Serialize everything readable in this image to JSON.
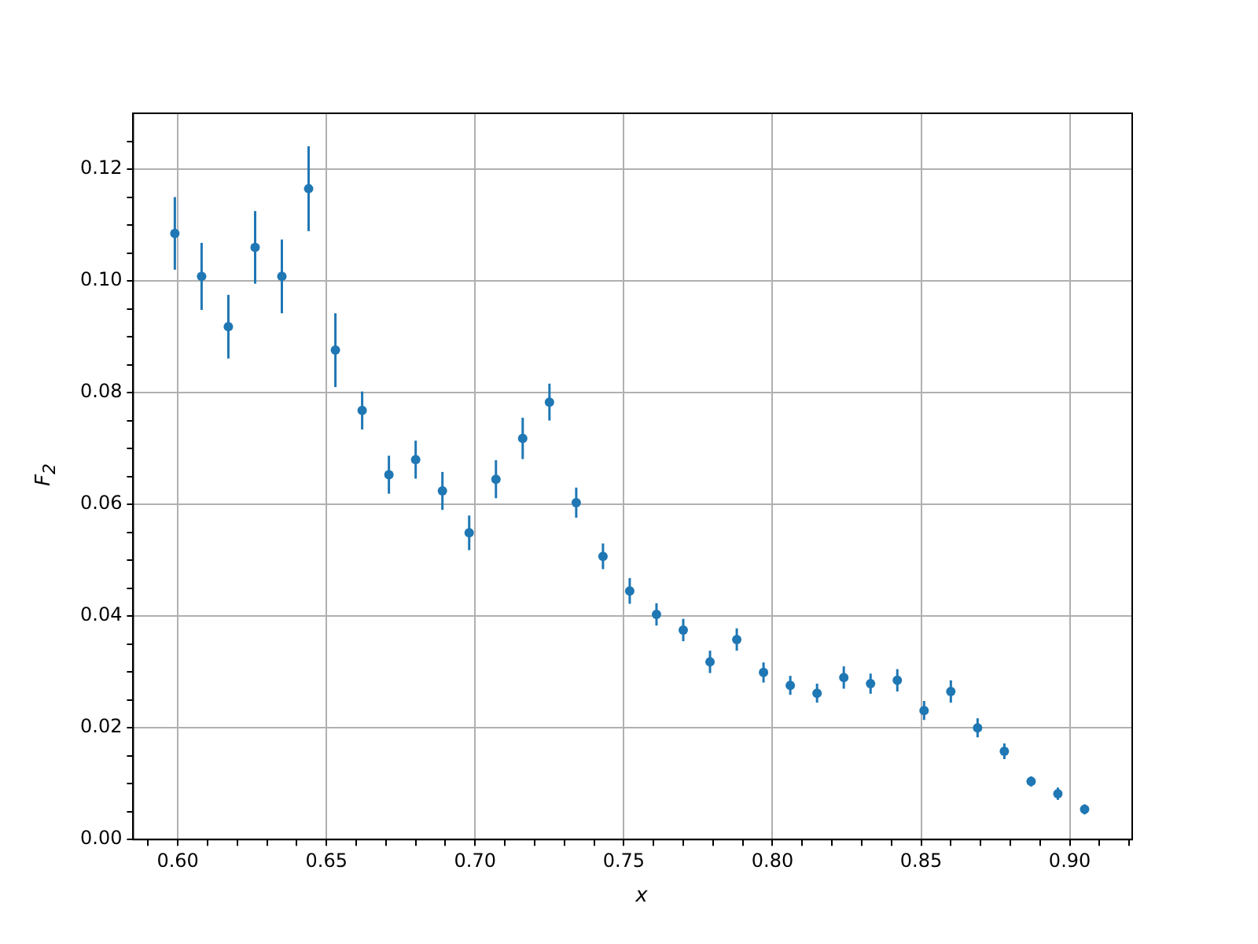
{
  "chart_data": {
    "type": "scatter",
    "xlabel": "x",
    "ylabel": "F$_{2}$",
    "marker": "circle",
    "grid": true,
    "x": [
      0.599,
      0.608,
      0.617,
      0.626,
      0.635,
      0.644,
      0.653,
      0.662,
      0.671,
      0.68,
      0.689,
      0.698,
      0.707,
      0.716,
      0.725,
      0.734,
      0.743,
      0.752,
      0.761,
      0.77,
      0.779,
      0.788,
      0.797,
      0.806,
      0.815,
      0.824,
      0.833,
      0.842,
      0.851,
      0.86,
      0.869,
      0.878,
      0.887,
      0.896,
      0.905
    ],
    "series": [
      {
        "color": "#1f77b4",
        "values": [
          0.1085,
          0.1008,
          0.0918,
          0.106,
          0.1008,
          0.1165,
          0.0876,
          0.0768,
          0.0653,
          0.068,
          0.0624,
          0.0549,
          0.0645,
          0.0718,
          0.0783,
          0.0603,
          0.0507,
          0.0445,
          0.0403,
          0.0375,
          0.0318,
          0.0358,
          0.0299,
          0.0276,
          0.0262,
          0.029,
          0.0279,
          0.0285,
          0.0231,
          0.0265,
          0.02,
          0.0158,
          0.0104,
          0.0082,
          0.0054
        ],
        "errors": [
          0.0065,
          0.006,
          0.0057,
          0.0065,
          0.0066,
          0.0076,
          0.0066,
          0.0034,
          0.0034,
          0.0034,
          0.0034,
          0.0031,
          0.0034,
          0.0037,
          0.0033,
          0.0027,
          0.0023,
          0.0023,
          0.002,
          0.002,
          0.002,
          0.002,
          0.0018,
          0.0017,
          0.0017,
          0.002,
          0.0018,
          0.002,
          0.0017,
          0.002,
          0.0017,
          0.0014,
          0.0009,
          0.0011,
          0.0009
        ]
      }
    ],
    "xlim": [
      0.585,
      0.921
    ],
    "xticks": [
      {
        "value": 0.59,
        "label": null
      },
      {
        "value": 0.6,
        "label": "0.60"
      },
      {
        "value": 0.61,
        "label": null
      },
      {
        "value": 0.62,
        "label": null
      },
      {
        "value": 0.63,
        "label": null
      },
      {
        "value": 0.64,
        "label": null
      },
      {
        "value": 0.65,
        "label": "0.65"
      },
      {
        "value": 0.66,
        "label": null
      },
      {
        "value": 0.67,
        "label": null
      },
      {
        "value": 0.68,
        "label": null
      },
      {
        "value": 0.69,
        "label": null
      },
      {
        "value": 0.7,
        "label": "0.70"
      },
      {
        "value": 0.71,
        "label": null
      },
      {
        "value": 0.72,
        "label": null
      },
      {
        "value": 0.73,
        "label": null
      },
      {
        "value": 0.74,
        "label": null
      },
      {
        "value": 0.75,
        "label": "0.75"
      },
      {
        "value": 0.76,
        "label": null
      },
      {
        "value": 0.77,
        "label": null
      },
      {
        "value": 0.78,
        "label": null
      },
      {
        "value": 0.79,
        "label": null
      },
      {
        "value": 0.8,
        "label": "0.80"
      },
      {
        "value": 0.81,
        "label": null
      },
      {
        "value": 0.82,
        "label": null
      },
      {
        "value": 0.83,
        "label": null
      },
      {
        "value": 0.84,
        "label": null
      },
      {
        "value": 0.85,
        "label": "0.85"
      },
      {
        "value": 0.86,
        "label": null
      },
      {
        "value": 0.87,
        "label": null
      },
      {
        "value": 0.88,
        "label": null
      },
      {
        "value": 0.89,
        "label": null
      },
      {
        "value": 0.9,
        "label": "0.90"
      },
      {
        "value": 0.91,
        "label": null
      },
      {
        "value": 0.92,
        "label": null
      }
    ],
    "ylim": [
      0,
      0.13
    ],
    "yticks": [
      {
        "value": 0,
        "label": "0.00"
      },
      {
        "value": 0.005,
        "label": null
      },
      {
        "value": 0.01,
        "label": null
      },
      {
        "value": 0.015,
        "label": null
      },
      {
        "value": 0.02,
        "label": "0.02"
      },
      {
        "value": 0.025,
        "label": null
      },
      {
        "value": 0.03,
        "label": null
      },
      {
        "value": 0.035,
        "label": null
      },
      {
        "value": 0.04,
        "label": "0.04"
      },
      {
        "value": 0.045,
        "label": null
      },
      {
        "value": 0.05,
        "label": null
      },
      {
        "value": 0.055,
        "label": null
      },
      {
        "value": 0.06,
        "label": "0.06"
      },
      {
        "value": 0.065,
        "label": null
      },
      {
        "value": 0.07,
        "label": null
      },
      {
        "value": 0.075,
        "label": null
      },
      {
        "value": 0.08,
        "label": "0.08"
      },
      {
        "value": 0.085,
        "label": null
      },
      {
        "value": 0.09,
        "label": null
      },
      {
        "value": 0.095,
        "label": null
      },
      {
        "value": 0.1,
        "label": "0.10"
      },
      {
        "value": 0.105,
        "label": null
      },
      {
        "value": 0.11,
        "label": null
      },
      {
        "value": 0.115,
        "label": null
      },
      {
        "value": 0.12,
        "label": "0.12"
      },
      {
        "value": 0.125,
        "label": null
      }
    ]
  }
}
